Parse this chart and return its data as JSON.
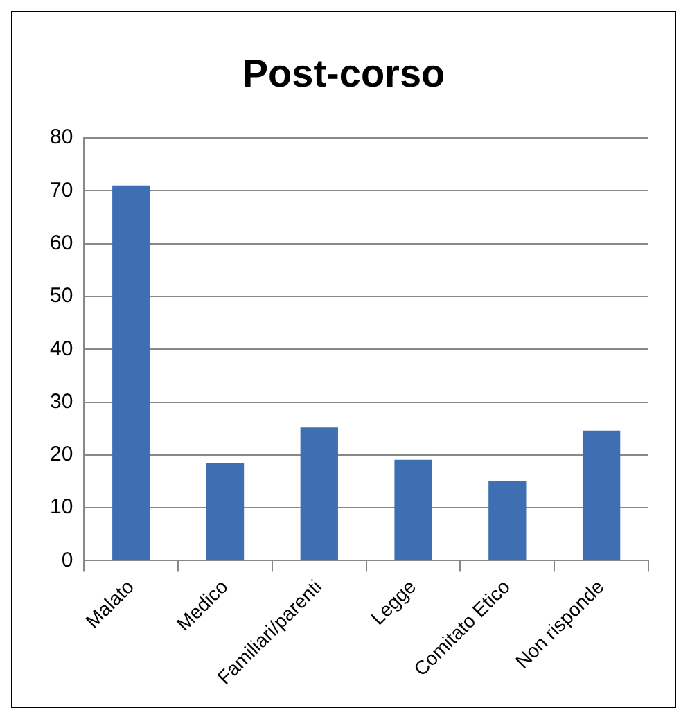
{
  "chart_data": {
    "type": "bar",
    "title": "Post-corso",
    "categories": [
      "Malato",
      "Medico",
      "Familiari/parenti",
      "Legge",
      "Comitato Etico",
      "Non risponde"
    ],
    "values": [
      71,
      18.5,
      25.2,
      19.1,
      15.1,
      24.6
    ],
    "color": "#3d6fb2",
    "ylim": [
      0,
      80
    ],
    "yticks": [
      0,
      10,
      20,
      30,
      40,
      50,
      60,
      70,
      80
    ],
    "grid": "y",
    "legend": false
  }
}
